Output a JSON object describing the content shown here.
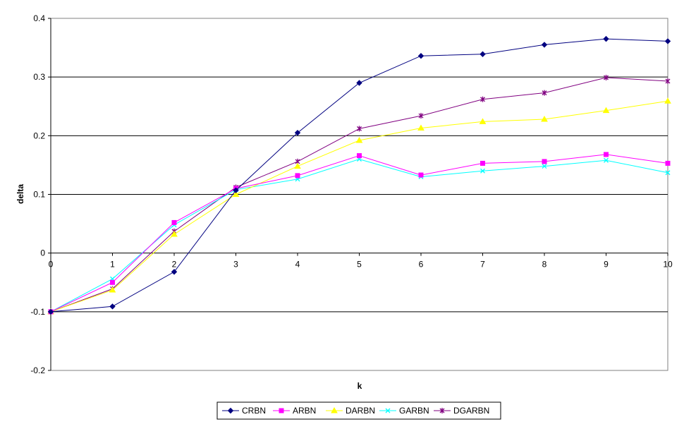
{
  "chart_data": {
    "type": "line",
    "title": "",
    "xlabel": "k",
    "ylabel": "delta",
    "xlim": [
      0,
      10
    ],
    "ylim": [
      -0.2,
      0.4
    ],
    "x": [
      0,
      1,
      2,
      3,
      4,
      5,
      6,
      7,
      8,
      9,
      10
    ],
    "x_ticks": [
      "0",
      "1",
      "2",
      "3",
      "4",
      "5",
      "6",
      "7",
      "8",
      "9",
      "10"
    ],
    "y_ticks": [
      -0.2,
      -0.1,
      0,
      0.1,
      0.2,
      0.3,
      0.4
    ],
    "y_tick_labels": [
      "-0.2",
      "-0.1",
      "0",
      "0.1",
      "0.2",
      "0.3",
      "0.4"
    ],
    "grid": "horizontal",
    "legend_position": "bottom",
    "series": [
      {
        "name": "CRBN",
        "color": "#000080",
        "marker": "diamond",
        "values": [
          -0.1,
          -0.091,
          -0.032,
          0.107,
          0.205,
          0.29,
          0.336,
          0.339,
          0.355,
          0.365,
          0.361
        ]
      },
      {
        "name": "ARBN",
        "color": "#ff00ff",
        "marker": "square",
        "values": [
          -0.1,
          -0.05,
          0.052,
          0.11,
          0.132,
          0.166,
          0.133,
          0.153,
          0.156,
          0.168,
          0.153
        ]
      },
      {
        "name": "DARBN",
        "color": "#ffff00",
        "marker": "triangle",
        "values": [
          -0.1,
          -0.063,
          0.032,
          0.1,
          0.148,
          0.192,
          0.213,
          0.224,
          0.228,
          0.243,
          0.259
        ]
      },
      {
        "name": "GARBN",
        "color": "#00ffff",
        "marker": "x",
        "values": [
          -0.1,
          -0.044,
          0.048,
          0.108,
          0.126,
          0.16,
          0.13,
          0.14,
          0.148,
          0.158,
          0.137
        ]
      },
      {
        "name": "DGARBN",
        "color": "#800080",
        "marker": "star",
        "values": [
          -0.1,
          -0.061,
          0.037,
          0.112,
          0.156,
          0.212,
          0.234,
          0.262,
          0.273,
          0.299,
          0.293
        ]
      }
    ]
  }
}
